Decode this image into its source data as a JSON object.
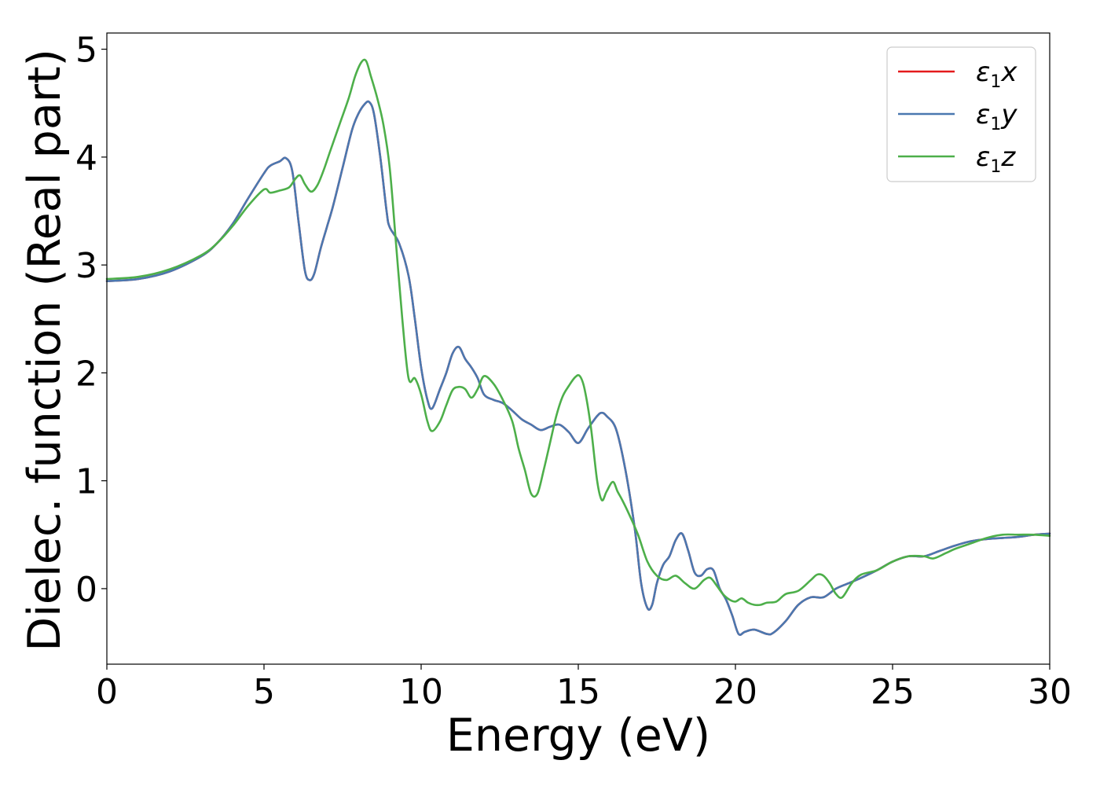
{
  "chart_data": {
    "type": "line",
    "title": "",
    "xlabel": "Energy (eV)",
    "ylabel": "Dielec. function (Real part)",
    "xlim": [
      0,
      30
    ],
    "ylim": [
      -0.7,
      5.15
    ],
    "xticks": [
      0,
      5,
      10,
      15,
      20,
      25,
      30
    ],
    "yticks": [
      0,
      1,
      2,
      3,
      4,
      5
    ],
    "grid": false,
    "legend_position": "top-right",
    "legend_symbol": "ε",
    "legend_subscript": "1",
    "series": [
      {
        "name": "ε1x",
        "legend_var": "x",
        "color": "#e41a1c",
        "x": [
          0,
          1,
          2,
          3,
          3.5,
          4,
          4.5,
          5,
          5.2,
          5.5,
          5.7,
          5.9,
          6.1,
          6.3,
          6.45,
          6.6,
          6.8,
          7,
          7.2,
          7.5,
          7.8,
          8.0,
          8.2,
          8.35,
          8.5,
          8.7,
          8.9,
          9.0,
          9.3,
          9.6,
          9.8,
          10.0,
          10.2,
          10.35,
          10.6,
          10.8,
          11.0,
          11.2,
          11.4,
          11.6,
          11.8,
          12.0,
          12.3,
          12.6,
          12.9,
          13.2,
          13.5,
          13.8,
          14.1,
          14.4,
          14.7,
          15.0,
          15.3,
          15.6,
          15.75,
          15.9,
          16.2,
          16.5,
          16.8,
          17.0,
          17.2,
          17.35,
          17.5,
          17.7,
          17.9,
          18.1,
          18.3,
          18.5,
          18.7,
          18.9,
          19.1,
          19.3,
          19.5,
          19.7,
          19.9,
          20.1,
          20.3,
          20.6,
          21.0,
          21.2,
          21.6,
          22.0,
          22.4,
          22.8,
          23.2,
          23.6,
          24.0,
          24.5,
          25.0,
          25.5,
          26.0,
          26.5,
          27.0,
          27.5,
          28.0,
          28.5,
          29.0,
          29.5,
          30.0
        ],
        "y": [
          2.85,
          2.87,
          2.94,
          3.08,
          3.2,
          3.38,
          3.62,
          3.85,
          3.92,
          3.96,
          3.99,
          3.87,
          3.4,
          2.95,
          2.86,
          2.92,
          3.15,
          3.35,
          3.55,
          3.9,
          4.25,
          4.4,
          4.49,
          4.51,
          4.4,
          4.0,
          3.5,
          3.35,
          3.2,
          2.9,
          2.5,
          2.05,
          1.75,
          1.67,
          1.85,
          2.0,
          2.18,
          2.24,
          2.13,
          2.05,
          1.95,
          1.8,
          1.75,
          1.72,
          1.65,
          1.57,
          1.52,
          1.47,
          1.5,
          1.52,
          1.45,
          1.35,
          1.48,
          1.6,
          1.63,
          1.6,
          1.48,
          1.1,
          0.55,
          0.05,
          -0.18,
          -0.15,
          0.05,
          0.22,
          0.3,
          0.45,
          0.51,
          0.35,
          0.15,
          0.12,
          0.18,
          0.17,
          0.0,
          -0.1,
          -0.25,
          -0.42,
          -0.4,
          -0.38,
          -0.42,
          -0.41,
          -0.3,
          -0.15,
          -0.08,
          -0.08,
          0.0,
          0.05,
          0.1,
          0.17,
          0.25,
          0.3,
          0.3,
          0.35,
          0.4,
          0.44,
          0.46,
          0.47,
          0.48,
          0.5,
          0.51
        ]
      },
      {
        "name": "ε1y",
        "legend_var": "y",
        "color": "#4a78b0",
        "x": [
          0,
          1,
          2,
          3,
          3.5,
          4,
          4.5,
          5,
          5.2,
          5.5,
          5.7,
          5.9,
          6.1,
          6.3,
          6.45,
          6.6,
          6.8,
          7,
          7.2,
          7.5,
          7.8,
          8.0,
          8.2,
          8.35,
          8.5,
          8.7,
          8.9,
          9.0,
          9.3,
          9.6,
          9.8,
          10.0,
          10.2,
          10.35,
          10.6,
          10.8,
          11.0,
          11.2,
          11.4,
          11.6,
          11.8,
          12.0,
          12.3,
          12.6,
          12.9,
          13.2,
          13.5,
          13.8,
          14.1,
          14.4,
          14.7,
          15.0,
          15.3,
          15.6,
          15.75,
          15.9,
          16.2,
          16.5,
          16.8,
          17.0,
          17.2,
          17.35,
          17.5,
          17.7,
          17.9,
          18.1,
          18.3,
          18.5,
          18.7,
          18.9,
          19.1,
          19.3,
          19.5,
          19.7,
          19.9,
          20.1,
          20.3,
          20.6,
          21.0,
          21.2,
          21.6,
          22.0,
          22.4,
          22.8,
          23.2,
          23.6,
          24.0,
          24.5,
          25.0,
          25.5,
          26.0,
          26.5,
          27.0,
          27.5,
          28.0,
          28.5,
          29.0,
          29.5,
          30.0
        ],
        "y": [
          2.85,
          2.87,
          2.94,
          3.08,
          3.2,
          3.38,
          3.62,
          3.85,
          3.92,
          3.96,
          3.99,
          3.87,
          3.4,
          2.95,
          2.86,
          2.92,
          3.15,
          3.35,
          3.55,
          3.9,
          4.25,
          4.4,
          4.49,
          4.51,
          4.4,
          4.0,
          3.5,
          3.35,
          3.2,
          2.9,
          2.5,
          2.05,
          1.75,
          1.67,
          1.85,
          2.0,
          2.18,
          2.24,
          2.13,
          2.05,
          1.95,
          1.8,
          1.75,
          1.72,
          1.65,
          1.57,
          1.52,
          1.47,
          1.5,
          1.52,
          1.45,
          1.35,
          1.48,
          1.6,
          1.63,
          1.6,
          1.48,
          1.1,
          0.55,
          0.05,
          -0.18,
          -0.15,
          0.05,
          0.22,
          0.3,
          0.45,
          0.51,
          0.35,
          0.15,
          0.12,
          0.18,
          0.17,
          0.0,
          -0.1,
          -0.25,
          -0.42,
          -0.4,
          -0.38,
          -0.42,
          -0.41,
          -0.3,
          -0.15,
          -0.08,
          -0.08,
          0.0,
          0.05,
          0.1,
          0.17,
          0.25,
          0.3,
          0.3,
          0.35,
          0.4,
          0.44,
          0.46,
          0.47,
          0.48,
          0.5,
          0.51
        ]
      },
      {
        "name": "ε1z",
        "legend_var": "z",
        "color": "#4daf4a",
        "x": [
          0,
          1,
          2,
          3,
          3.5,
          4,
          4.5,
          5,
          5.2,
          5.5,
          5.8,
          6.0,
          6.15,
          6.3,
          6.5,
          6.7,
          6.9,
          7.1,
          7.4,
          7.7,
          7.9,
          8.1,
          8.25,
          8.4,
          8.6,
          8.8,
          9.0,
          9.2,
          9.4,
          9.6,
          9.8,
          10.0,
          10.2,
          10.35,
          10.6,
          10.8,
          11.0,
          11.2,
          11.4,
          11.6,
          11.8,
          12.0,
          12.3,
          12.6,
          12.9,
          13.1,
          13.3,
          13.5,
          13.7,
          13.9,
          14.1,
          14.3,
          14.5,
          14.7,
          14.9,
          15.05,
          15.2,
          15.4,
          15.6,
          15.75,
          15.9,
          16.1,
          16.25,
          16.4,
          16.6,
          16.9,
          17.2,
          17.5,
          17.8,
          18.1,
          18.4,
          18.7,
          19.0,
          19.2,
          19.4,
          19.6,
          19.8,
          20.0,
          20.2,
          20.4,
          20.6,
          20.8,
          21.0,
          21.3,
          21.6,
          22.0,
          22.4,
          22.6,
          22.8,
          23.0,
          23.2,
          23.4,
          23.7,
          24.0,
          24.5,
          25.0,
          25.5,
          26.0,
          26.3,
          26.7,
          27.0,
          27.5,
          28.0,
          28.5,
          29.0,
          29.5,
          30.0
        ],
        "y": [
          2.87,
          2.89,
          2.96,
          3.09,
          3.2,
          3.36,
          3.55,
          3.7,
          3.67,
          3.69,
          3.72,
          3.8,
          3.83,
          3.75,
          3.68,
          3.74,
          3.88,
          4.05,
          4.3,
          4.55,
          4.75,
          4.88,
          4.89,
          4.75,
          4.55,
          4.3,
          3.9,
          3.2,
          2.5,
          1.95,
          1.95,
          1.8,
          1.55,
          1.46,
          1.55,
          1.7,
          1.84,
          1.87,
          1.85,
          1.77,
          1.85,
          1.97,
          1.9,
          1.75,
          1.55,
          1.3,
          1.1,
          0.88,
          0.88,
          1.1,
          1.35,
          1.6,
          1.78,
          1.88,
          1.96,
          1.97,
          1.85,
          1.5,
          1.0,
          0.82,
          0.9,
          0.99,
          0.9,
          0.82,
          0.7,
          0.5,
          0.25,
          0.12,
          0.08,
          0.12,
          0.05,
          0.0,
          0.08,
          0.1,
          0.03,
          -0.05,
          -0.1,
          -0.12,
          -0.09,
          -0.13,
          -0.15,
          -0.15,
          -0.13,
          -0.12,
          -0.05,
          -0.02,
          0.08,
          0.13,
          0.12,
          0.05,
          -0.05,
          -0.08,
          0.05,
          0.13,
          0.17,
          0.25,
          0.3,
          0.3,
          0.28,
          0.33,
          0.37,
          0.42,
          0.47,
          0.5,
          0.5,
          0.5,
          0.49
        ]
      }
    ]
  }
}
